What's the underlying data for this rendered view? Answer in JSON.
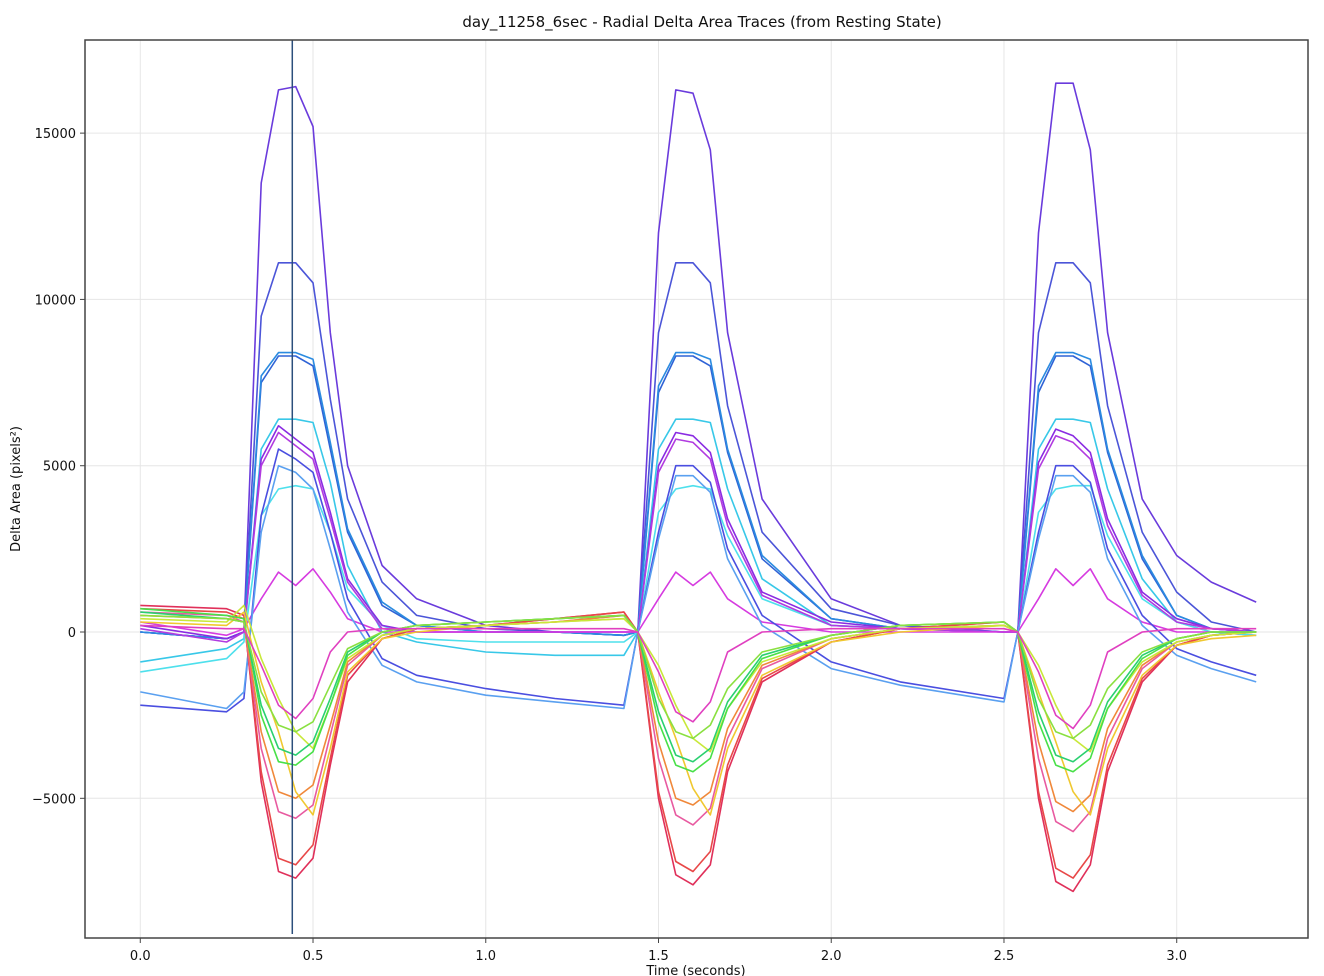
{
  "chart_data": {
    "type": "line",
    "title": "day_11258_6sec - Radial Delta Area Traces (from Resting State)",
    "xlabel": "Time (seconds)",
    "ylabel": "Delta Area (pixels²)",
    "xlim": [
      -0.16,
      3.38
    ],
    "ylim": [
      -9200,
      17800
    ],
    "xticks": [
      0.0,
      0.5,
      1.0,
      1.5,
      2.0,
      2.5,
      3.0
    ],
    "xtick_labels": [
      "0.0",
      "0.5",
      "1.0",
      "1.5",
      "2.0",
      "2.5",
      "3.0"
    ],
    "yticks": [
      -5000,
      0,
      5000,
      10000,
      15000
    ],
    "ytick_labels": [
      "−5000",
      "0",
      "5000",
      "10000",
      "15000"
    ],
    "grid": true,
    "vline_x": 0.44,
    "vline_color": "#2c4f7c",
    "legend": "none",
    "x": [
      0.0,
      0.25,
      0.3,
      0.35,
      0.4,
      0.45,
      0.5,
      0.55,
      0.6,
      0.7,
      0.8,
      1.0,
      1.2,
      1.4,
      1.44,
      1.5,
      1.55,
      1.6,
      1.65,
      1.7,
      1.8,
      2.0,
      2.2,
      2.5,
      2.54,
      2.6,
      2.65,
      2.7,
      2.75,
      2.8,
      2.9,
      3.0,
      3.1,
      3.23
    ],
    "series": [
      {
        "color": "#6a3bdc",
        "values": [
          0,
          -200,
          0,
          13500,
          16300,
          16400,
          15200,
          9000,
          5000,
          2000,
          1000,
          200,
          0,
          -100,
          0,
          12000,
          16300,
          16200,
          14500,
          9000,
          4000,
          1000,
          200,
          0,
          0,
          12000,
          16500,
          16500,
          14500,
          9000,
          4000,
          2300,
          1500,
          900
        ]
      },
      {
        "color": "#4b55d8",
        "values": [
          0,
          -200,
          0,
          9500,
          11100,
          11100,
          10500,
          7000,
          4000,
          1500,
          500,
          100,
          0,
          -100,
          0,
          9000,
          11100,
          11100,
          10500,
          6800,
          3000,
          700,
          200,
          0,
          0,
          9000,
          11100,
          11100,
          10500,
          6800,
          3000,
          1200,
          300,
          0
        ]
      },
      {
        "color": "#2f63d6",
        "values": [
          0,
          -200,
          0,
          7500,
          8300,
          8300,
          8000,
          5500,
          3000,
          800,
          200,
          0,
          0,
          -100,
          0,
          7200,
          8300,
          8300,
          8000,
          5400,
          2200,
          400,
          100,
          0,
          0,
          7200,
          8300,
          8300,
          8000,
          5400,
          2200,
          500,
          100,
          0
        ]
      },
      {
        "color": "#2b8be0",
        "values": [
          0,
          -200,
          0,
          7700,
          8400,
          8400,
          8200,
          5700,
          3100,
          900,
          200,
          0,
          0,
          -100,
          0,
          7400,
          8400,
          8400,
          8200,
          5500,
          2300,
          400,
          100,
          0,
          0,
          7400,
          8400,
          8400,
          8200,
          5500,
          2300,
          500,
          100,
          0
        ]
      },
      {
        "color": "#38c8e8",
        "values": [
          -900,
          -500,
          -200,
          5500,
          6400,
          6400,
          6300,
          4500,
          2000,
          0,
          -300,
          -600,
          -700,
          -700,
          0,
          5500,
          6400,
          6400,
          6300,
          4300,
          1600,
          200,
          100,
          0,
          0,
          5500,
          6400,
          6400,
          6300,
          4300,
          1600,
          300,
          0,
          -100
        ]
      },
      {
        "color": "#4ee0ec",
        "values": [
          -1200,
          -800,
          -300,
          3500,
          4300,
          4400,
          4300,
          3000,
          1300,
          200,
          -200,
          -300,
          -300,
          -300,
          0,
          3600,
          4300,
          4400,
          4300,
          2900,
          1000,
          200,
          100,
          0,
          0,
          3600,
          4300,
          4400,
          4400,
          2900,
          1000,
          300,
          0,
          -100
        ]
      },
      {
        "color": "#8a2be2",
        "values": [
          200,
          -200,
          0,
          5200,
          6200,
          5800,
          5400,
          3600,
          1600,
          200,
          0,
          0,
          0,
          0,
          0,
          5000,
          6000,
          5900,
          5400,
          3400,
          1200,
          300,
          100,
          0,
          0,
          5100,
          6100,
          5900,
          5400,
          3400,
          1200,
          400,
          100,
          0
        ]
      },
      {
        "color": "#b13be0",
        "values": [
          100,
          -300,
          0,
          5000,
          6000,
          5600,
          5200,
          3400,
          1500,
          100,
          0,
          0,
          0,
          0,
          0,
          4800,
          5800,
          5700,
          5200,
          3200,
          1100,
          200,
          100,
          0,
          0,
          4900,
          5900,
          5700,
          5200,
          3200,
          1100,
          300,
          100,
          0
        ]
      },
      {
        "color": "#d63be0",
        "values": [
          300,
          -100,
          100,
          1000,
          1800,
          1400,
          1900,
          1200,
          400,
          0,
          0,
          0,
          0,
          0,
          0,
          1000,
          1800,
          1400,
          1800,
          1000,
          300,
          0,
          0,
          0,
          0,
          1000,
          1900,
          1400,
          1900,
          1000,
          300,
          0,
          0,
          0
        ]
      },
      {
        "color": "#4a4ee0",
        "values": [
          -2200,
          -2400,
          -2000,
          3500,
          5500,
          5200,
          4800,
          3000,
          1000,
          -800,
          -1300,
          -1700,
          -2000,
          -2200,
          0,
          3000,
          5000,
          5000,
          4500,
          2500,
          500,
          -900,
          -1500,
          -2000,
          0,
          3000,
          5000,
          5000,
          4500,
          2500,
          500,
          -500,
          -900,
          -1300
        ]
      },
      {
        "color": "#5aa0f0",
        "values": [
          -1800,
          -2300,
          -1800,
          3000,
          5000,
          4800,
          4300,
          2500,
          600,
          -1000,
          -1500,
          -1900,
          -2100,
          -2300,
          0,
          2800,
          4700,
          4700,
          4200,
          2200,
          200,
          -1100,
          -1600,
          -2100,
          0,
          2800,
          4700,
          4700,
          4200,
          2200,
          200,
          -700,
          -1100,
          -1500
        ]
      },
      {
        "color": "#e0305a",
        "values": [
          800,
          700,
          500,
          -4500,
          -7200,
          -7400,
          -6800,
          -4000,
          -1500,
          -200,
          100,
          200,
          400,
          600,
          0,
          -5000,
          -7300,
          -7600,
          -7000,
          -4200,
          -1500,
          -300,
          100,
          300,
          0,
          -5000,
          -7500,
          -7800,
          -7000,
          -4200,
          -1500,
          -400,
          -100,
          0
        ]
      },
      {
        "color": "#e84848",
        "values": [
          700,
          600,
          400,
          -4200,
          -6800,
          -7000,
          -6400,
          -3800,
          -1300,
          -200,
          100,
          200,
          400,
          600,
          0,
          -4800,
          -6900,
          -7200,
          -6600,
          -4000,
          -1400,
          -300,
          100,
          300,
          0,
          -4800,
          -7100,
          -7400,
          -6700,
          -4000,
          -1400,
          -400,
          -100,
          0
        ]
      },
      {
        "color": "#e85aa0",
        "values": [
          600,
          500,
          300,
          -3500,
          -5400,
          -5600,
          -5200,
          -3100,
          -1000,
          -100,
          100,
          200,
          300,
          500,
          0,
          -3800,
          -5500,
          -5800,
          -5300,
          -3200,
          -1100,
          -200,
          100,
          200,
          0,
          -3800,
          -5700,
          -6000,
          -5400,
          -3200,
          -1100,
          -300,
          -100,
          0
        ]
      },
      {
        "color": "#f0883a",
        "values": [
          500,
          400,
          300,
          -3000,
          -4800,
          -5000,
          -4600,
          -2800,
          -900,
          -100,
          100,
          200,
          300,
          500,
          0,
          -3300,
          -5000,
          -5200,
          -4800,
          -2900,
          -1000,
          -200,
          100,
          200,
          0,
          -3300,
          -5100,
          -5400,
          -4900,
          -2900,
          -1000,
          -300,
          -100,
          0
        ]
      },
      {
        "color": "#f0c830",
        "values": [
          300,
          200,
          600,
          -1500,
          -3000,
          -4800,
          -5500,
          -3500,
          -1200,
          -200,
          0,
          200,
          300,
          400,
          0,
          -1800,
          -3200,
          -4700,
          -5500,
          -3500,
          -1300,
          -300,
          0,
          200,
          0,
          -1800,
          -3300,
          -4800,
          -5500,
          -3500,
          -1300,
          -400,
          -200,
          -100
        ]
      },
      {
        "color": "#c8e83a",
        "values": [
          400,
          300,
          800,
          -800,
          -2000,
          -3000,
          -3500,
          -2200,
          -800,
          -100,
          100,
          200,
          300,
          400,
          0,
          -1000,
          -2200,
          -3200,
          -3600,
          -2300,
          -900,
          -200,
          100,
          200,
          0,
          -1000,
          -2200,
          -3200,
          -3600,
          -2300,
          -900,
          -300,
          -100,
          0
        ]
      },
      {
        "color": "#48e048",
        "values": [
          700,
          500,
          400,
          -2500,
          -3900,
          -4000,
          -3600,
          -2200,
          -700,
          0,
          200,
          300,
          400,
          500,
          0,
          -2700,
          -4000,
          -4200,
          -3800,
          -2300,
          -800,
          -100,
          200,
          300,
          0,
          -2700,
          -4000,
          -4200,
          -3800,
          -2300,
          -800,
          -200,
          0,
          0
        ]
      },
      {
        "color": "#2ad070",
        "values": [
          600,
          400,
          300,
          -2200,
          -3500,
          -3700,
          -3300,
          -2000,
          -600,
          0,
          200,
          300,
          400,
          500,
          0,
          -2400,
          -3700,
          -3900,
          -3500,
          -2100,
          -700,
          -100,
          200,
          300,
          0,
          -2400,
          -3700,
          -3900,
          -3500,
          -2100,
          -700,
          -200,
          0,
          0
        ]
      },
      {
        "color": "#8ae040",
        "values": [
          500,
          400,
          300,
          -1800,
          -2800,
          -3000,
          -2700,
          -1600,
          -500,
          0,
          200,
          300,
          400,
          500,
          0,
          -2000,
          -3000,
          -3200,
          -2800,
          -1700,
          -600,
          -100,
          200,
          300,
          0,
          -2000,
          -3000,
          -3200,
          -2800,
          -1700,
          -600,
          -200,
          0,
          0
        ]
      },
      {
        "color": "#e040c0",
        "values": [
          200,
          100,
          100,
          -1000,
          -2200,
          -2600,
          -2000,
          -600,
          0,
          100,
          100,
          100,
          100,
          100,
          0,
          -1200,
          -2400,
          -2700,
          -2100,
          -600,
          0,
          100,
          100,
          100,
          0,
          -1200,
          -2500,
          -2900,
          -2200,
          -600,
          0,
          100,
          100,
          100
        ]
      }
    ]
  }
}
